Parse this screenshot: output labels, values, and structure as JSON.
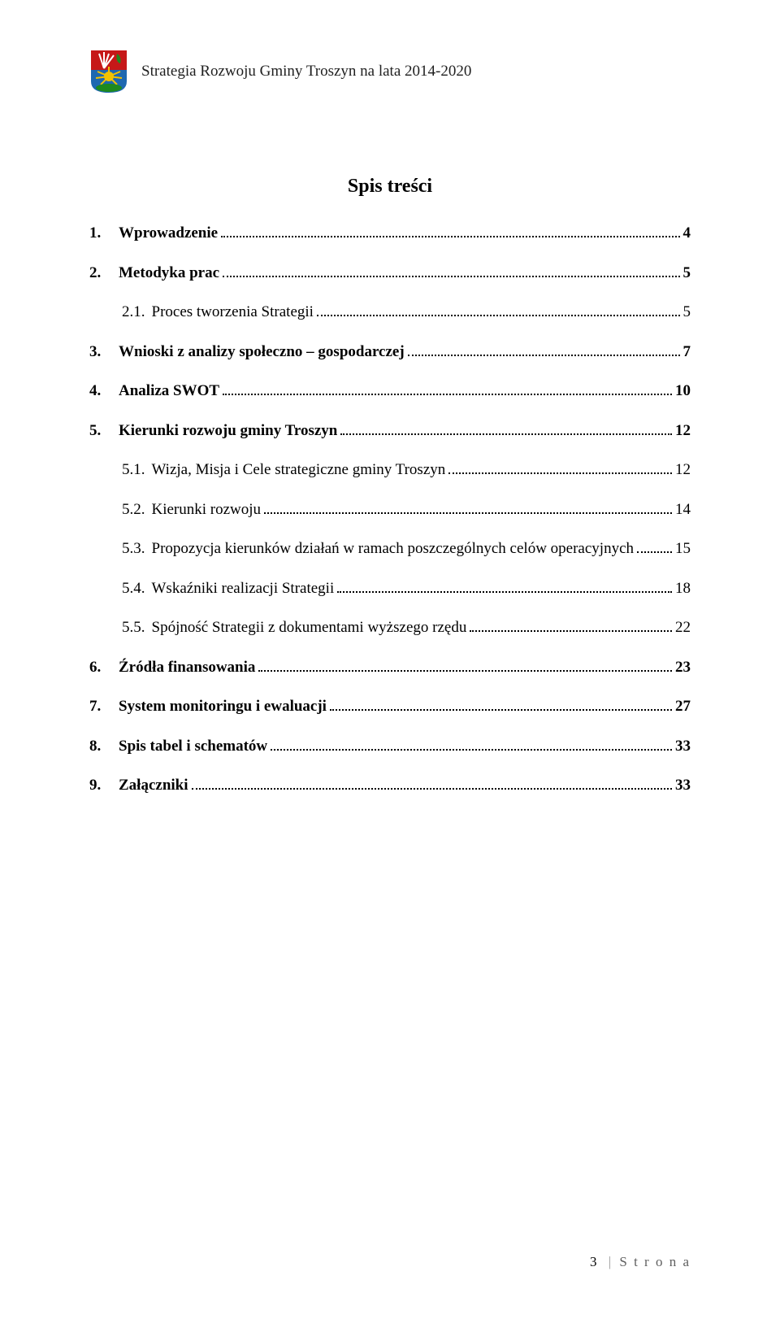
{
  "header": {
    "title": "Strategia Rozwoju Gminy Troszyn na lata 2014-2020"
  },
  "crest": {
    "colors": {
      "top_bg": "#c61818",
      "bottom_bg": "#1e68b0",
      "sun_rays": "#f2c200",
      "green": "#1e8a1e",
      "white": "#ffffff"
    }
  },
  "toc": {
    "title": "Spis treści",
    "items": [
      {
        "level": 1,
        "num": "1.",
        "label": "Wprowadzenie",
        "page": "4"
      },
      {
        "level": 1,
        "num": "2.",
        "label": "Metodyka prac",
        "page": "5"
      },
      {
        "level": 2,
        "num": "2.1.",
        "label": "Proces tworzenia Strategii",
        "page": "5"
      },
      {
        "level": 1,
        "num": "3.",
        "label": "Wnioski z analizy społeczno – gospodarczej",
        "page": "7"
      },
      {
        "level": 1,
        "num": "4.",
        "label": "Analiza SWOT",
        "page": "10"
      },
      {
        "level": 1,
        "num": "5.",
        "label": "Kierunki rozwoju gminy Troszyn",
        "page": "12"
      },
      {
        "level": 2,
        "num": "5.1.",
        "label": "Wizja, Misja i Cele strategiczne gminy Troszyn",
        "page": "12"
      },
      {
        "level": 2,
        "num": "5.2.",
        "label": "Kierunki rozwoju",
        "page": "14"
      },
      {
        "level": 2,
        "num": "5.3.",
        "label": "Propozycja kierunków działań w ramach poszczególnych celów operacyjnych",
        "page": "15"
      },
      {
        "level": 2,
        "num": "5.4.",
        "label": "Wskaźniki realizacji Strategii",
        "page": "18"
      },
      {
        "level": 2,
        "num": "5.5.",
        "label": "Spójność Strategii z dokumentami wyższego rzędu",
        "page": "22"
      },
      {
        "level": 1,
        "num": "6.",
        "label": "Źródła finansowania",
        "page": "23"
      },
      {
        "level": 1,
        "num": "7.",
        "label": "System monitoringu i ewaluacji",
        "page": "27"
      },
      {
        "level": 1,
        "num": "8.",
        "label": "Spis tabel i schematów",
        "page": "33"
      },
      {
        "level": 1,
        "num": "9.",
        "label": "Załączniki",
        "page": "33"
      }
    ]
  },
  "footer": {
    "page_number": "3",
    "separator": "|",
    "label": "S t r o n a"
  }
}
